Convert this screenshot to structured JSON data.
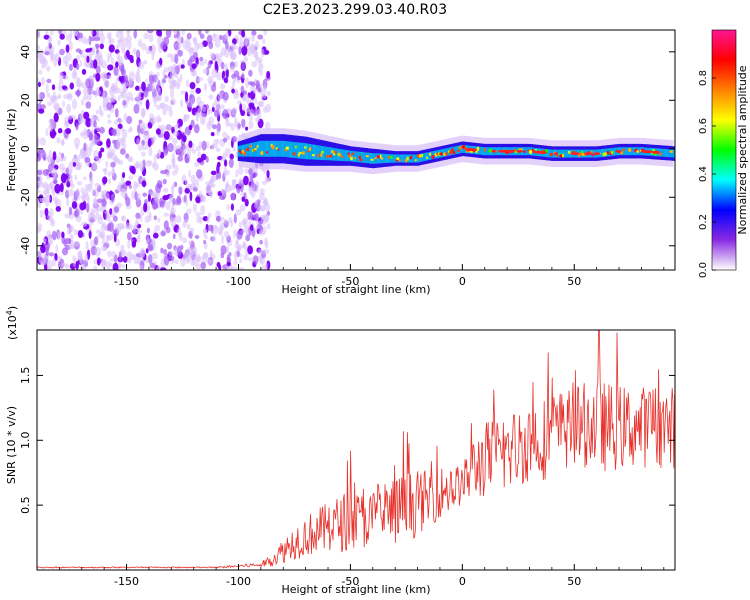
{
  "chart_data": [
    {
      "type": "heatmap",
      "title": "C2E3.2023.299.03.40.R03",
      "xlabel": "Height of straight line (km)",
      "ylabel": "Frequency (Hz)",
      "xlim": [
        -190,
        95
      ],
      "ylim": [
        -50,
        49
      ],
      "xticks": [
        -150,
        -100,
        -50,
        0,
        50
      ],
      "xtick_labels": [
        "-150",
        "-100",
        "-50",
        "0",
        "50"
      ],
      "yticks": [
        -40,
        -20,
        0,
        20,
        40
      ],
      "ytick_labels": [
        "-40",
        "-20",
        "0",
        "20",
        "40"
      ],
      "colorbar": {
        "label": "Normalized spectral amplitude",
        "range": [
          0,
          1
        ],
        "ticks": [
          0.0,
          0.2,
          0.4,
          0.6,
          0.8
        ],
        "tick_labels": [
          "0.0",
          "0.2",
          "0.4",
          "0.6",
          "0.8"
        ],
        "stops": [
          "#ffffff",
          "#8a2be2",
          "#0000ff",
          "#00ffff",
          "#00ff00",
          "#ffff00",
          "#ff8000",
          "#ff0000",
          "#ff1493"
        ]
      },
      "noise_region": {
        "x_range": [
          -190,
          -90
        ],
        "freq_range": [
          -50,
          49
        ],
        "amplitude": "low"
      },
      "signal_band": {
        "x": [
          -100,
          -90,
          -80,
          -70,
          -60,
          -50,
          -40,
          -30,
          -20,
          -10,
          0,
          10,
          20,
          30,
          40,
          50,
          60,
          70,
          80,
          95
        ],
        "center_hz": [
          -1,
          0,
          0,
          -1,
          -2,
          -3,
          -4,
          -4,
          -4,
          -2,
          0,
          -1,
          -1,
          -1,
          -2,
          -2,
          -2,
          -1,
          -1,
          -2
        ],
        "halfwidth_hz": [
          4,
          6,
          6,
          6,
          5,
          4,
          4,
          3,
          3,
          3,
          3,
          3,
          3,
          3,
          3,
          3,
          3,
          3,
          3,
          3
        ]
      }
    },
    {
      "type": "line",
      "title": "",
      "xlabel": "Height of straight line (km)",
      "ylabel": "SNR (10 * v/v)",
      "y_multiplier": "(x10",
      "y_multiplier_exp": "4",
      "y_multiplier_close": ")",
      "xlim": [
        -190,
        95
      ],
      "ylim": [
        0,
        1.85
      ],
      "xticks": [
        -150,
        -100,
        -50,
        0,
        50
      ],
      "xtick_labels": [
        "-150",
        "-100",
        "-50",
        "0",
        "50"
      ],
      "yticks": [
        0.5,
        1.0,
        1.5
      ],
      "ytick_labels": [
        "0.5",
        "1.0",
        "1.5"
      ],
      "series": [
        {
          "name": "SNR",
          "color": "#e8312b",
          "x": [
            -190,
            -170,
            -150,
            -130,
            -110,
            -100,
            -90,
            -85,
            -80,
            -75,
            -70,
            -65,
            -60,
            -55,
            -50,
            -45,
            -40,
            -35,
            -30,
            -25,
            -20,
            -15,
            -10,
            -5,
            0,
            5,
            10,
            15,
            20,
            25,
            30,
            35,
            40,
            45,
            50,
            55,
            60,
            65,
            70,
            75,
            80,
            85,
            90,
            95
          ],
          "mean": [
            0.02,
            0.02,
            0.02,
            0.02,
            0.02,
            0.03,
            0.04,
            0.08,
            0.15,
            0.22,
            0.26,
            0.3,
            0.32,
            0.36,
            0.38,
            0.38,
            0.4,
            0.42,
            0.45,
            0.48,
            0.52,
            0.55,
            0.6,
            0.62,
            0.66,
            0.78,
            0.85,
            0.88,
            0.9,
            0.95,
            1.0,
            1.0,
            1.05,
            1.08,
            1.1,
            1.12,
            1.12,
            1.1,
            1.1,
            1.1,
            1.1,
            1.12,
            1.1,
            1.1
          ],
          "spread": [
            0.005,
            0.005,
            0.005,
            0.005,
            0.005,
            0.01,
            0.02,
            0.05,
            0.1,
            0.14,
            0.16,
            0.18,
            0.2,
            0.22,
            0.25,
            0.22,
            0.22,
            0.25,
            0.28,
            0.28,
            0.25,
            0.22,
            0.2,
            0.2,
            0.15,
            0.25,
            0.3,
            0.3,
            0.3,
            0.32,
            0.32,
            0.32,
            0.33,
            0.32,
            0.32,
            0.33,
            0.35,
            0.35,
            0.33,
            0.32,
            0.32,
            0.32,
            0.32,
            0.32
          ],
          "peak": {
            "x": 61,
            "y": 1.85
          }
        }
      ]
    }
  ]
}
